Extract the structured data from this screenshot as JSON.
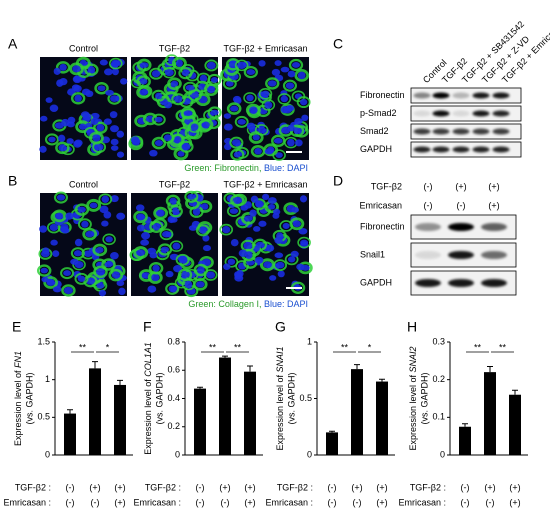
{
  "labels": [
    "A",
    "B",
    "C",
    "D",
    "E",
    "F",
    "G",
    "H"
  ],
  "panel_a": {
    "columns": [
      "Control",
      "TGF-β2",
      "TGF-β2 + Emricasan"
    ],
    "caption": [
      "Green: Fibronectin,",
      "Blue: DAPI"
    ]
  },
  "panel_b": {
    "columns": [
      "Control",
      "TGF-β2",
      "TGF-β2 + Emricasan"
    ],
    "caption": [
      "Green: Collagen I,",
      "Blue: DAPI"
    ]
  },
  "panel_c": {
    "lanes": [
      "Control",
      "TGF-β2",
      "TGF-β2 + SB431542",
      "TGF-β2 + Z-VD",
      "TGF-β2 + Emricasan"
    ],
    "rows": [
      "Fibronectin",
      "p-Smad2",
      "Smad2",
      "GAPDH"
    ]
  },
  "panel_d": {
    "conditions": [
      {
        "name": "TGF-β2",
        "marks": [
          "(-)",
          "(+)",
          "(+)"
        ]
      },
      {
        "name": "Emricasan",
        "marks": [
          "(-)",
          "(-)",
          "(+)"
        ]
      }
    ],
    "rows": [
      "Fibronectin",
      "Snail1",
      "GAPDH"
    ]
  },
  "chart_data": [
    {
      "type": "bar",
      "ylabel_parts": [
        "Expression level of ",
        "FN1"
      ],
      "ylabel_unit": "(vs. GAPDH)",
      "values": [
        0.55,
        1.15,
        0.93
      ],
      "errors": [
        0.05,
        0.09,
        0.06
      ],
      "ylim": [
        0,
        1.5
      ],
      "yticks": [
        0,
        0.5,
        1,
        1.5
      ],
      "color": "#000000",
      "significance": [
        "**",
        "*"
      ],
      "conditions": [
        {
          "name": "TGF-β2 :",
          "marks": [
            "(-)",
            "(+)",
            "(+)"
          ]
        },
        {
          "name": "Emricasan :",
          "marks": [
            "(-)",
            "(-)",
            "(+)"
          ]
        }
      ]
    },
    {
      "type": "bar",
      "ylabel_parts": [
        "Expression level of ",
        "COL1A1"
      ],
      "ylabel_unit": "(vs. GAPDH)",
      "values": [
        0.47,
        0.69,
        0.59
      ],
      "errors": [
        0.01,
        0.01,
        0.04
      ],
      "ylim": [
        0,
        0.8
      ],
      "yticks": [
        0,
        0.2,
        0.4,
        0.6,
        0.8
      ],
      "color": "#000000",
      "significance": [
        "**",
        "**"
      ],
      "conditions": [
        {
          "name": "TGF-β2 :",
          "marks": [
            "(-)",
            "(+)",
            "(+)"
          ]
        },
        {
          "name": "Emricasan :",
          "marks": [
            "(-)",
            "(-)",
            "(+)"
          ]
        }
      ]
    },
    {
      "type": "bar",
      "ylabel_parts": [
        "Expression level of ",
        "SNAI1"
      ],
      "ylabel_unit": "(vs. GAPDH)",
      "values": [
        0.2,
        0.76,
        0.65
      ],
      "errors": [
        0.01,
        0.04,
        0.02
      ],
      "ylim": [
        0,
        1
      ],
      "yticks": [
        0,
        0.5,
        1
      ],
      "color": "#000000",
      "significance": [
        "**",
        "*"
      ],
      "conditions": [
        {
          "name": "TGF-β2 :",
          "marks": [
            "(-)",
            "(+)",
            "(+)"
          ]
        },
        {
          "name": "Emricasan :",
          "marks": [
            "(-)",
            "(-)",
            "(+)"
          ]
        }
      ]
    },
    {
      "type": "bar",
      "ylabel_parts": [
        "Expression level of ",
        "SNAI2"
      ],
      "ylabel_unit": "(vs. GAPDH)",
      "values": [
        0.075,
        0.22,
        0.16
      ],
      "errors": [
        0.008,
        0.015,
        0.012
      ],
      "ylim": [
        0,
        0.3
      ],
      "yticks": [
        0,
        0.1,
        0.2,
        0.3
      ],
      "color": "#000000",
      "significance": [
        "**",
        "**"
      ],
      "conditions": [
        {
          "name": "TGF-β2 :",
          "marks": [
            "(-)",
            "(+)",
            "(+)"
          ]
        },
        {
          "name": "Emricasan :",
          "marks": [
            "(-)",
            "(-)",
            "(+)"
          ]
        }
      ]
    }
  ]
}
